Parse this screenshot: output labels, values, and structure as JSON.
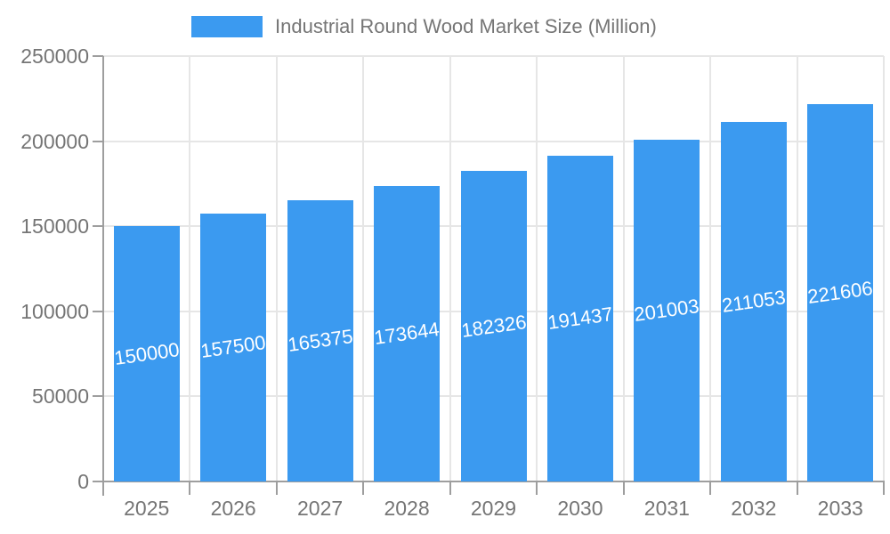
{
  "legend": {
    "label": "Industrial Round Wood Market Size (Million)"
  },
  "chart_data": {
    "type": "bar",
    "title": "Industrial Round Wood Market Size (Million)",
    "categories": [
      "2025",
      "2026",
      "2027",
      "2028",
      "2029",
      "2030",
      "2031",
      "2032",
      "2033"
    ],
    "values": [
      150000,
      157500,
      165375,
      173644,
      182326,
      191437,
      201003,
      211053,
      221606
    ],
    "value_labels": [
      "150000",
      "157500",
      "165375",
      "173644",
      "182326",
      "191437",
      "201003",
      "211053",
      "221606"
    ],
    "xlabel": "",
    "ylabel": "",
    "ylim": [
      0,
      250000
    ],
    "y_ticks": [
      0,
      50000,
      100000,
      150000,
      200000,
      250000
    ],
    "y_tick_labels": [
      "0",
      "50000",
      "100000",
      "150000",
      "200000",
      "250000"
    ],
    "grid": true,
    "legend_position": "top-center",
    "value_label_position": "inside-middle"
  },
  "colors": {
    "bar": "#3b9af0",
    "axis": "#9e9e9e",
    "grid": "#e6e6e6",
    "text": "#757575",
    "value_label": "#ffffff",
    "background": "#ffffff"
  }
}
